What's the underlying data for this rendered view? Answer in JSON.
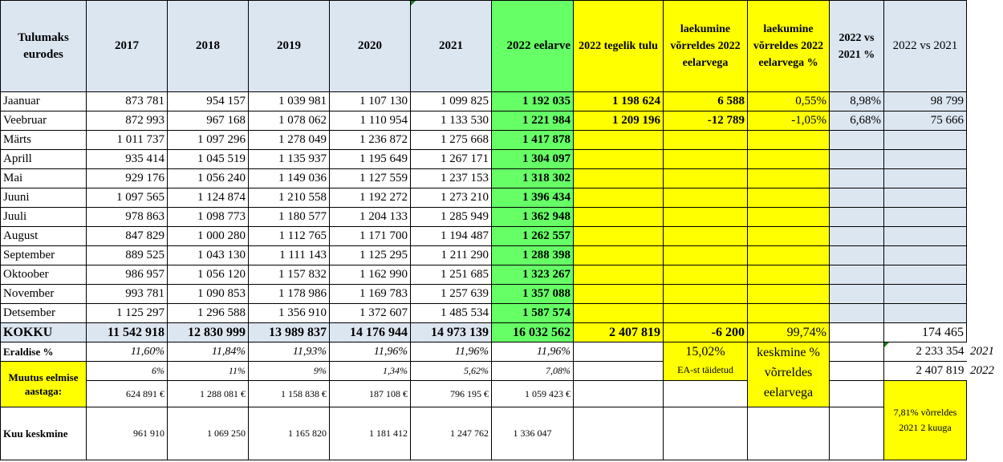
{
  "headers": {
    "label": "Tulumaks eurodes",
    "y2017": "2017",
    "y2018": "2018",
    "y2019": "2019",
    "y2020": "2020",
    "y2021": "2021",
    "budget": "2022 eelarve",
    "actual": "2022 tegelik tulu",
    "vs_budget": "laekumine võrreldes 2022 eelarvega",
    "vs_budget_pct": "laekumine võrreldes 2022 eelarvega %",
    "vs_2021_pct": "2022 vs 2021 %",
    "vs_2021": "2022 vs 2021"
  },
  "months": [
    {
      "name": "Jaanuar",
      "v": [
        "873 781",
        "954 157",
        "1 039 981",
        "1 107 130",
        "1 099 825"
      ],
      "budget": "1 192 035",
      "actual": "1 198 624",
      "diff": "6 588",
      "diff_pct": "0,55%",
      "pct21": "8,98%",
      "d21": "98 799"
    },
    {
      "name": "Veebruar",
      "v": [
        "872 993",
        "967 168",
        "1 078 062",
        "1 110 954",
        "1 133 530"
      ],
      "budget": "1 221 984",
      "actual": "1 209 196",
      "diff": "-12 789",
      "diff_pct": "-1,05%",
      "pct21": "6,68%",
      "d21": "75 666"
    },
    {
      "name": "Märts",
      "v": [
        "1 011 737",
        "1 097 296",
        "1 278 049",
        "1 236 872",
        "1 275 668"
      ],
      "budget": "1 417 878",
      "actual": "",
      "diff": "",
      "diff_pct": "",
      "pct21": "",
      "d21": ""
    },
    {
      "name": "Aprill",
      "v": [
        "935 414",
        "1 045 519",
        "1 135 937",
        "1 195 649",
        "1 267 171"
      ],
      "budget": "1 304 097",
      "actual": "",
      "diff": "",
      "diff_pct": "",
      "pct21": "",
      "d21": ""
    },
    {
      "name": "Mai",
      "v": [
        "929 176",
        "1 056 240",
        "1 149 036",
        "1 127 559",
        "1 237 153"
      ],
      "budget": "1 318 302",
      "actual": "",
      "diff": "",
      "diff_pct": "",
      "pct21": "",
      "d21": ""
    },
    {
      "name": "Juuni",
      "v": [
        "1 097 565",
        "1 124 874",
        "1 210 558",
        "1 192 272",
        "1 273 210"
      ],
      "budget": "1 396 434",
      "actual": "",
      "diff": "",
      "diff_pct": "",
      "pct21": "",
      "d21": ""
    },
    {
      "name": "Juuli",
      "v": [
        "978 863",
        "1 098 773",
        "1 180 577",
        "1 204 133",
        "1 285 949"
      ],
      "budget": "1 362 948",
      "actual": "",
      "diff": "",
      "diff_pct": "",
      "pct21": "",
      "d21": ""
    },
    {
      "name": "August",
      "v": [
        "847 829",
        "1 000 280",
        "1 112 765",
        "1 171 700",
        "1 194 487"
      ],
      "budget": "1 262 557",
      "actual": "",
      "diff": "",
      "diff_pct": "",
      "pct21": "",
      "d21": ""
    },
    {
      "name": "September",
      "v": [
        "889 525",
        "1 043 130",
        "1 111 143",
        "1 125 295",
        "1 211 290"
      ],
      "budget": "1 288 398",
      "actual": "",
      "diff": "",
      "diff_pct": "",
      "pct21": "",
      "d21": ""
    },
    {
      "name": "Oktoober",
      "v": [
        "986 957",
        "1 056 120",
        "1 157 832",
        "1 162 990",
        "1 251 685"
      ],
      "budget": "1 323 267",
      "actual": "",
      "diff": "",
      "diff_pct": "",
      "pct21": "",
      "d21": ""
    },
    {
      "name": "November",
      "v": [
        "993 781",
        "1 090 853",
        "1 178 986",
        "1 169 783",
        "1 257 639"
      ],
      "budget": "1 357 088",
      "actual": "",
      "diff": "",
      "diff_pct": "",
      "pct21": "",
      "d21": ""
    },
    {
      "name": "Detsember",
      "v": [
        "1 125 297",
        "1 296 588",
        "1 356 910",
        "1 372 607",
        "1 485 534"
      ],
      "budget": "1 587 574",
      "actual": "",
      "diff": "",
      "diff_pct": "",
      "pct21": "",
      "d21": ""
    }
  ],
  "total": {
    "label": "KOKKU",
    "v": [
      "11 542 918",
      "12 830 999",
      "13 989 837",
      "14 176 944",
      "14 973 139"
    ],
    "budget": "16 032 562",
    "actual": "2 407 819",
    "diff": "-6 200",
    "diff_pct": "99,74%",
    "pct21": "",
    "d21": "174 465"
  },
  "share": {
    "label": "Eraldise %",
    "v": [
      "11,60%",
      "11,84%",
      "11,93%",
      "11,96%",
      "11,96%"
    ],
    "budget": "11,96%",
    "ea_pct": "15,02%",
    "ea_label": "EA-st täidetud",
    "avg_label": "keskmine % võrreldes eelarvega",
    "d21": "2 233 354",
    "d21_year": "2021"
  },
  "change": {
    "label": "Muutus eelmise aastaga:",
    "pct": [
      "6%",
      "11%",
      "9%",
      "1,34%",
      "5,62%"
    ],
    "pct_budget": "7,08%",
    "eur": [
      "624 891 €",
      "1 288 081 €",
      "1 158 838 €",
      "187 108 €",
      "796 195 €"
    ],
    "eur_budget": "1 059 423 €",
    "d21": "2 407 819",
    "d21_year": "2022",
    "note": "7,81% võrreldes 2021 2 kuuga"
  },
  "monthly_avg": {
    "label": "Kuu keskmine",
    "v": [
      "961 910",
      "1 069 250",
      "1 165 820",
      "1 181 412",
      "1 247 762"
    ],
    "budget": "1 336 047"
  },
  "colors": {
    "header_blue": "#dce6f1",
    "green": "#66ff66",
    "yellow": "#ffff00"
  }
}
